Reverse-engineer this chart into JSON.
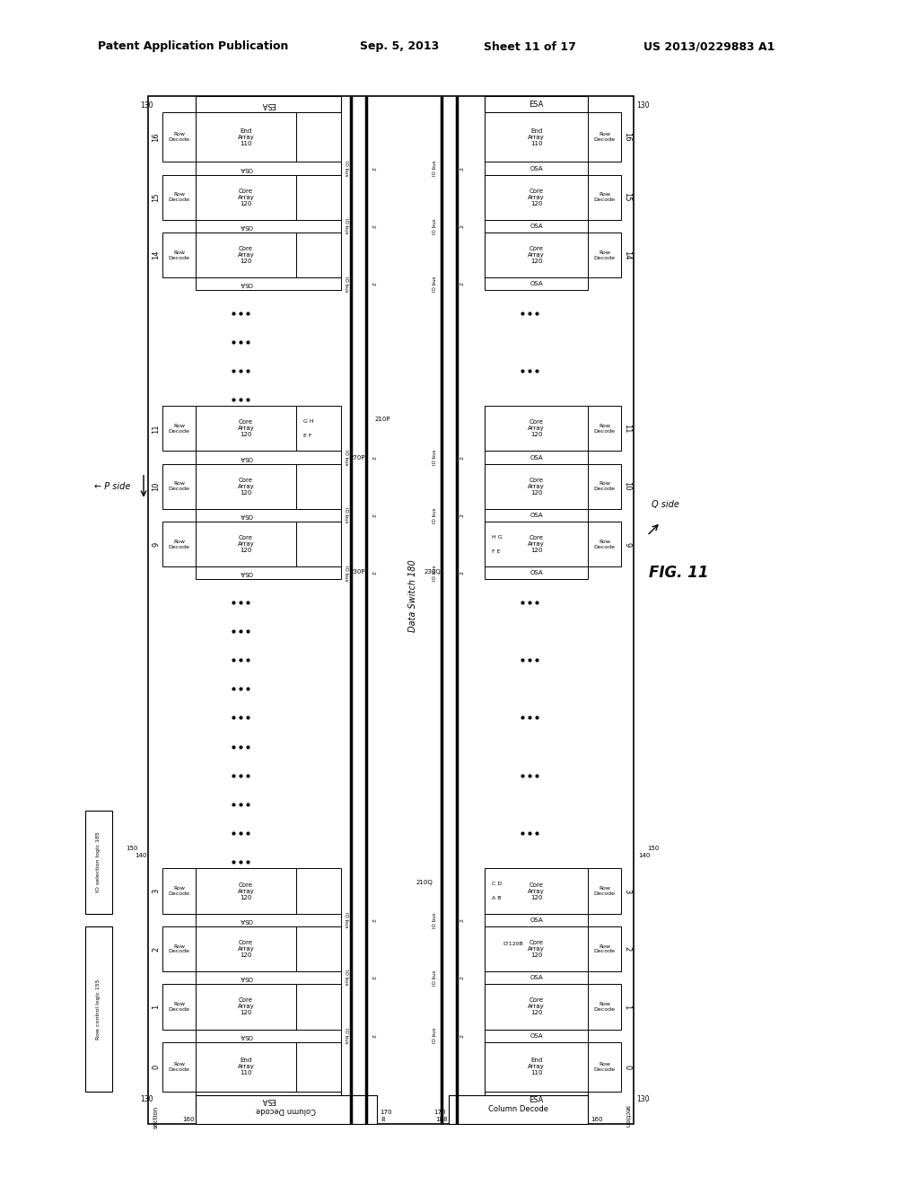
{
  "title_line1": "Patent Application Publication",
  "title_date": "Sep. 5, 2013",
  "title_sheet": "Sheet 11 of 17",
  "title_patent": "US 2013/0229883 A1",
  "fig_label": "FIG. 11",
  "bg_color": "#ffffff"
}
